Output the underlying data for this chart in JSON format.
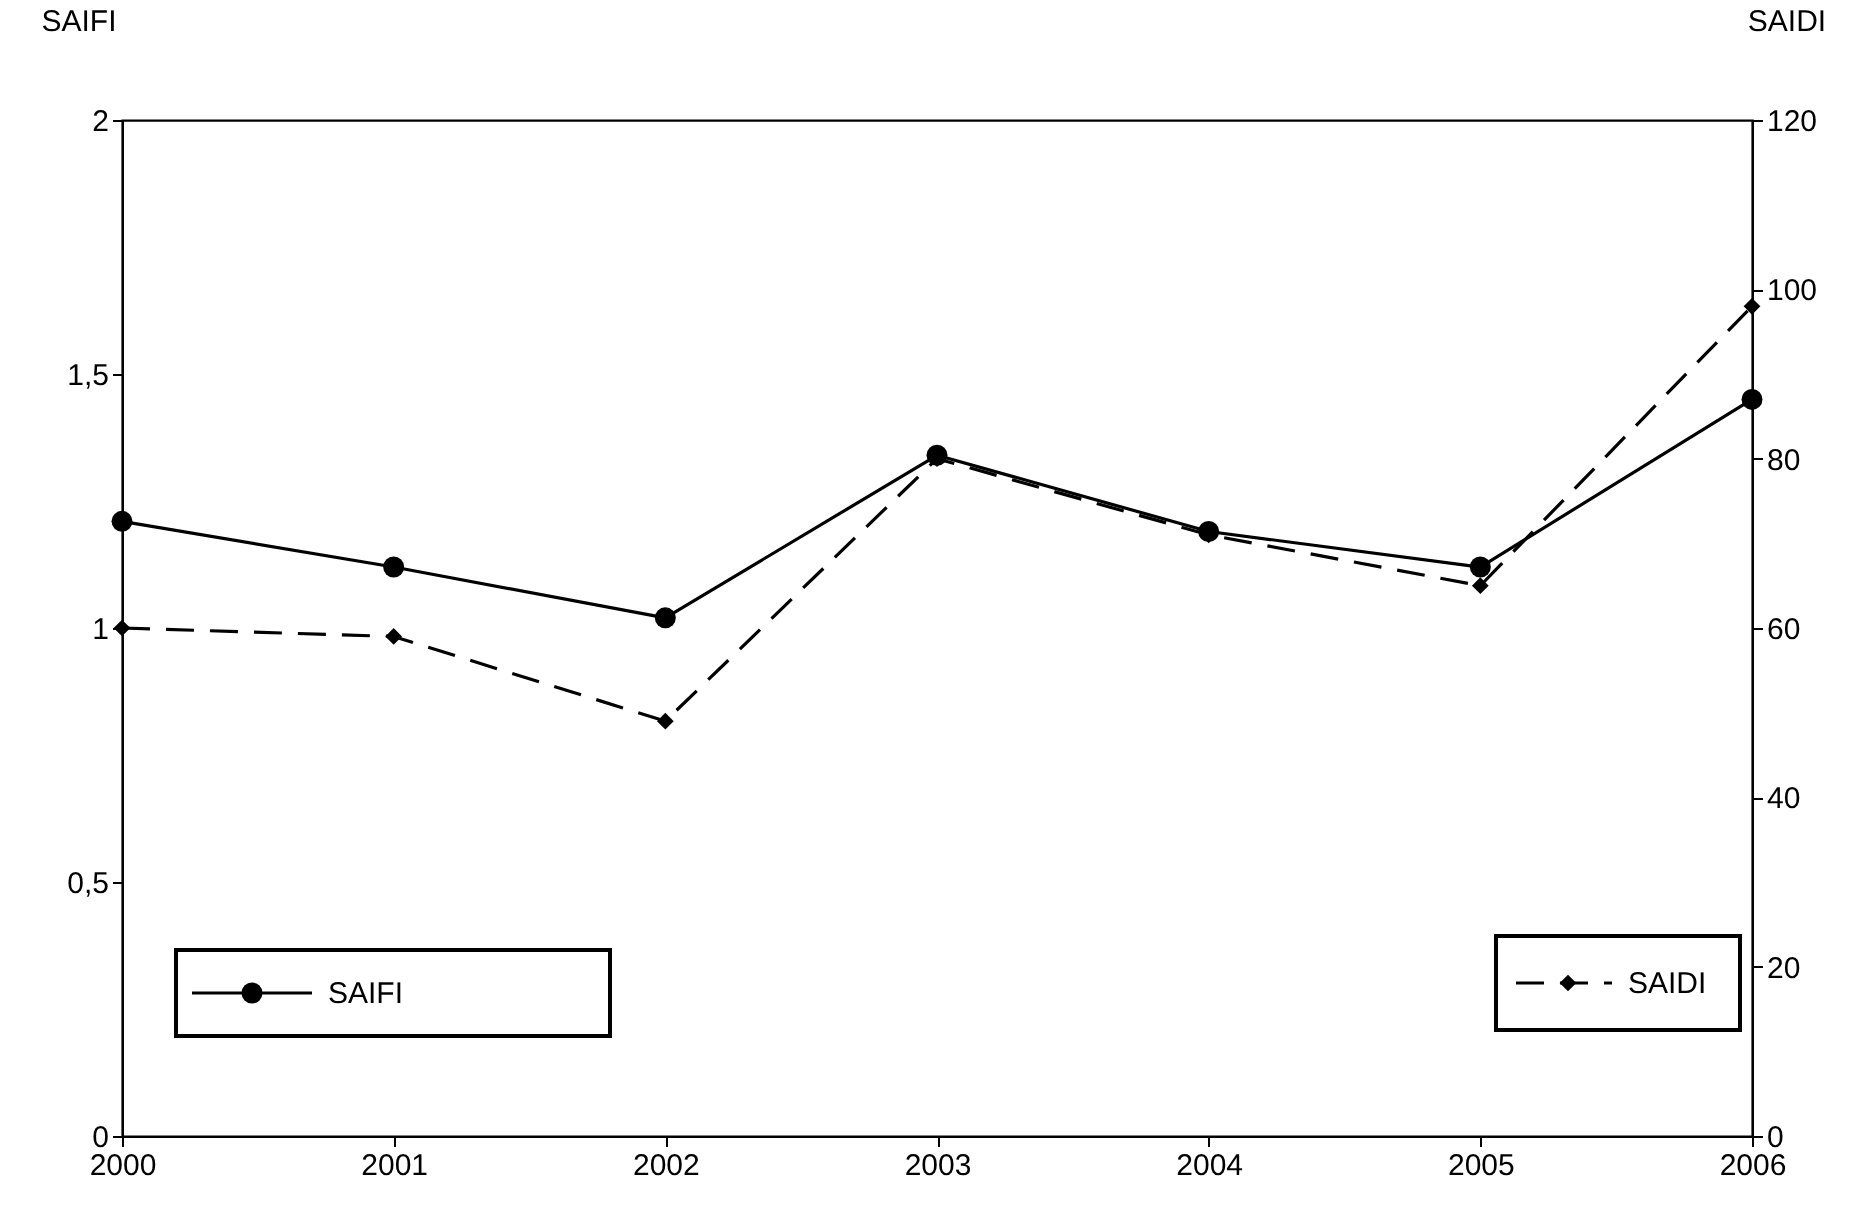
{
  "chart_data": {
    "type": "line",
    "ylabel": "SAIFI",
    "y2label": "SAIDI",
    "x": [
      2000,
      2001,
      2002,
      2003,
      2004,
      2005,
      2006
    ],
    "xlim": [
      2000,
      2006
    ],
    "xticks": [
      2000,
      2001,
      2002,
      2003,
      2004,
      2005,
      2006
    ],
    "ylim": [
      0,
      2
    ],
    "yticks": [
      0,
      {
        "value": 0.5,
        "label": "0,5"
      },
      1,
      {
        "value": 1.5,
        "label": "1,5"
      },
      2
    ],
    "y2lim": [
      0,
      120
    ],
    "y2ticks": [
      0,
      20,
      40,
      60,
      80,
      100,
      120
    ],
    "series": [
      {
        "name": "SAIFI",
        "color": "#000000",
        "marker": "circle",
        "line_style": "solid",
        "values": [
          1.21,
          1.12,
          1.02,
          1.34,
          1.19,
          1.12,
          1.45
        ]
      },
      {
        "name": "SAIDI",
        "color": "#000000",
        "marker": "diamond",
        "line_style": "dashed",
        "axis": "y2",
        "values": [
          60,
          59,
          49,
          80,
          71,
          65,
          98
        ]
      }
    ],
    "legend": "bottom",
    "grid": false
  }
}
